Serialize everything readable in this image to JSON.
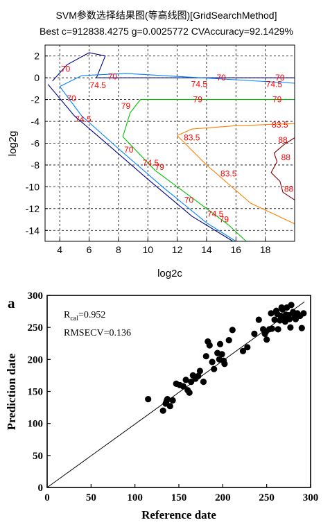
{
  "chart_data": [
    {
      "type": "contour",
      "title": "SVM参数选择结果图(等高线图)[GridSearchMethod]",
      "subtitle": "Best c=912838.4275 g=0.0025772 CVAccuracy=92.1429%",
      "xlabel": "log2c",
      "ylabel": "log2g",
      "xlim": [
        3,
        20
      ],
      "ylim": [
        -15,
        3
      ],
      "xticks": [
        "4",
        "6",
        "8",
        "10",
        "12",
        "14",
        "16",
        "18"
      ],
      "yticks": [
        "2",
        "0",
        "-2",
        "-4",
        "-6",
        "-8",
        "-10",
        "-12",
        "-14"
      ],
      "grid": true,
      "levels": [
        {
          "value": "70",
          "color": "#000080",
          "lines": [
            [
              [
                3.5,
                -0.3
              ],
              [
                4.5,
                1.2
              ],
              [
                6,
                2.3
              ],
              [
                7.1,
                2.0
              ],
              [
                6.8,
                1.0
              ],
              [
                6.5,
                0.0
              ],
              [
                20,
                0.0
              ]
            ],
            [
              [
                3.2,
                -0.6
              ],
              [
                5,
                -3.5
              ],
              [
                7,
                -5.8
              ],
              [
                10,
                -9.3
              ],
              [
                13,
                -12.7
              ],
              [
                15.8,
                -15
              ]
            ]
          ],
          "labels": [
            [
              4.4,
              0.8
            ],
            [
              7.6,
              0.1
            ],
            [
              15,
              0.0
            ],
            [
              19,
              0.0
            ],
            [
              4.8,
              -1.9
            ],
            [
              8.7,
              -6.6
            ],
            [
              12.8,
              -11.2
            ]
          ]
        },
        {
          "value": "74.5",
          "color": "#0080ff",
          "lines": [
            [
              [
                4,
                -0.8
              ],
              [
                5.5,
                0.2
              ],
              [
                8.5,
                0.4
              ],
              [
                20,
                -0.5
              ]
            ],
            [
              [
                4,
                -0.8
              ],
              [
                5.5,
                -3.5
              ],
              [
                8,
                -6.5
              ],
              [
                11,
                -10
              ],
              [
                14,
                -13.3
              ],
              [
                16,
                -15
              ]
            ]
          ],
          "labels": [
            [
              6.6,
              -0.7
            ],
            [
              13.5,
              -0.6
            ],
            [
              18.6,
              -0.6
            ],
            [
              5.6,
              -3.8
            ],
            [
              10.2,
              -7.8
            ],
            [
              14.6,
              -12.5
            ]
          ]
        },
        {
          "value": "79",
          "color": "#00c000",
          "lines": [
            [
              [
                8.3,
                -5.4
              ],
              [
                8.8,
                -3.2
              ],
              [
                9.5,
                -2.0
              ],
              [
                20,
                -2.0
              ]
            ],
            [
              [
                8.3,
                -5.4
              ],
              [
                10.5,
                -8.5
              ],
              [
                13,
                -11
              ],
              [
                15.5,
                -13.5
              ],
              [
                16.7,
                -15
              ]
            ]
          ],
          "labels": [
            [
              8.5,
              -2.6
            ],
            [
              13.4,
              -2.0
            ],
            [
              18.8,
              -2.0
            ],
            [
              10.8,
              -8.2
            ],
            [
              15.2,
              -13
            ]
          ]
        },
        {
          "value": "83.5",
          "color": "#ff8000",
          "lines": [
            [
              [
                12,
                -5.3
              ],
              [
                13,
                -4.7
              ],
              [
                16,
                -4.4
              ],
              [
                20,
                -4.2
              ]
            ],
            [
              [
                12,
                -5.3
              ],
              [
                14,
                -8
              ],
              [
                17,
                -11.5
              ],
              [
                20,
                -13.4
              ]
            ]
          ],
          "labels": [
            [
              19,
              -4.3
            ],
            [
              13,
              -5.5
            ],
            [
              15.5,
              -8.8
            ]
          ]
        },
        {
          "value": "88",
          "color": "#800000",
          "lines": [
            [
              [
                20,
                -5.5
              ],
              [
                19.3,
                -6.1
              ],
              [
                18.6,
                -6.9
              ],
              [
                18.8,
                -7.7
              ],
              [
                18.4,
                -8.7
              ],
              [
                19.0,
                -9.5
              ],
              [
                19.2,
                -10.5
              ],
              [
                20,
                -11.2
              ]
            ]
          ],
          "labels": [
            [
              19.2,
              -5.7
            ],
            [
              19.4,
              -7.3
            ],
            [
              19.6,
              -10.2
            ]
          ]
        }
      ]
    },
    {
      "type": "scatter",
      "panel_label": "a",
      "xlabel": "Reference date",
      "ylabel": "Prediction date",
      "xlim": [
        0,
        300
      ],
      "ylim": [
        0,
        300
      ],
      "xticks": [
        "0",
        "50",
        "100",
        "150",
        "200",
        "250",
        "300"
      ],
      "yticks": [
        "0",
        "50",
        "100",
        "150",
        "200",
        "250",
        "300"
      ],
      "grid": false,
      "annotations": [
        {
          "main": "R",
          "sub": "cal",
          "rest": "=0.952"
        },
        {
          "main": "RMSECV=0.136",
          "sub": "",
          "rest": ""
        }
      ],
      "fit_line": [
        [
          0,
          0
        ],
        [
          293,
          290
        ]
      ],
      "points": [
        [
          115,
          138
        ],
        [
          132,
          120
        ],
        [
          135,
          131
        ],
        [
          137,
          138
        ],
        [
          136,
          135
        ],
        [
          140,
          127
        ],
        [
          143,
          136
        ],
        [
          147,
          162
        ],
        [
          151,
          160
        ],
        [
          155,
          158
        ],
        [
          158,
          168
        ],
        [
          160,
          152
        ],
        [
          162,
          148
        ],
        [
          164,
          165
        ],
        [
          166,
          175
        ],
        [
          169,
          170
        ],
        [
          172,
          174
        ],
        [
          174,
          182
        ],
        [
          178,
          165
        ],
        [
          181,
          205
        ],
        [
          183,
          228
        ],
        [
          185,
          222
        ],
        [
          188,
          196
        ],
        [
          190,
          185
        ],
        [
          194,
          210
        ],
        [
          196,
          200
        ],
        [
          197,
          224
        ],
        [
          199,
          208
        ],
        [
          201,
          198
        ],
        [
          202,
          193
        ],
        [
          207,
          230
        ],
        [
          211,
          246
        ],
        [
          223,
          213
        ],
        [
          228,
          219
        ],
        [
          236,
          240
        ],
        [
          241,
          262
        ],
        [
          246,
          247
        ],
        [
          248,
          240
        ],
        [
          249,
          243
        ],
        [
          250,
          231
        ],
        [
          253,
          247
        ],
        [
          256,
          248
        ],
        [
          259,
          262
        ],
        [
          261,
          276
        ],
        [
          262,
          271
        ],
        [
          263,
          247
        ],
        [
          265,
          261
        ],
        [
          266,
          268
        ],
        [
          268,
          278
        ],
        [
          270,
          266
        ],
        [
          271,
          259
        ],
        [
          272,
          270
        ],
        [
          273,
          281
        ],
        [
          275,
          269
        ],
        [
          276,
          263
        ],
        [
          277,
          250
        ],
        [
          278,
          285
        ],
        [
          280,
          274
        ],
        [
          282,
          268
        ],
        [
          283,
          263
        ],
        [
          285,
          272
        ],
        [
          288,
          268
        ],
        [
          290,
          249
        ],
        [
          292,
          272
        ],
        [
          255,
          272
        ],
        [
          267,
          281
        ]
      ]
    }
  ]
}
